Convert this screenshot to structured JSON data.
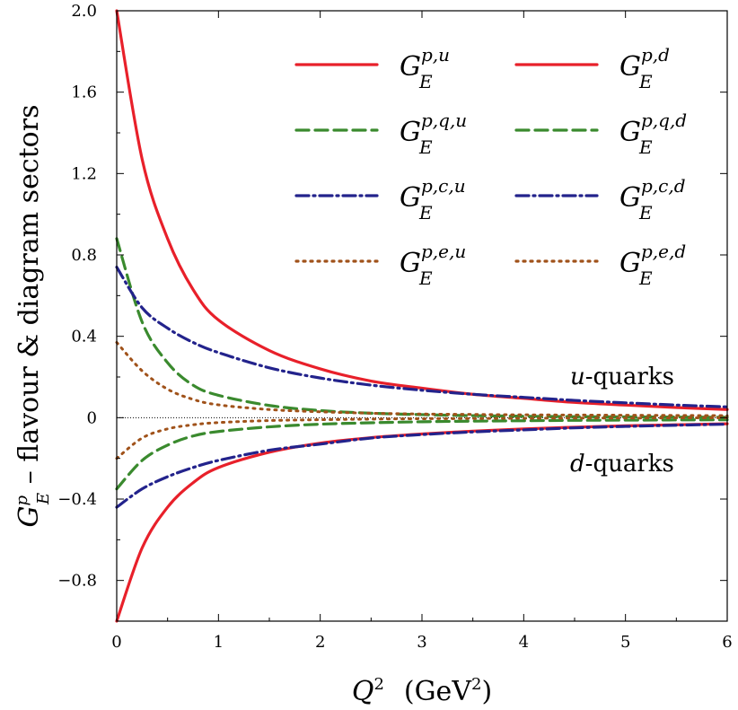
{
  "chart_data": {
    "type": "line",
    "title": "",
    "xlabel": {
      "main": "Q",
      "sup": "2",
      "unit_open": "(GeV",
      "unit_sup": "2",
      "unit_close": ")"
    },
    "ylabel": {
      "base": "G",
      "sup": "p",
      "sub": "E",
      "rest": " – flavour & diagram sectors"
    },
    "xlim": [
      0,
      6
    ],
    "ylim": [
      -1.0,
      2.0
    ],
    "x_ticks": [
      0,
      1,
      2,
      3,
      4,
      5,
      6
    ],
    "x_tick_labels": [
      "0",
      "1",
      "2",
      "3",
      "4",
      "5",
      "6"
    ],
    "y_ticks": [
      -0.8,
      -0.4,
      0,
      0.4,
      0.8,
      1.2,
      1.6,
      2.0
    ],
    "y_tick_labels": [
      "−0.8",
      "−0.4",
      "0",
      "0.4",
      "0.8",
      "1.2",
      "1.6",
      "2.0"
    ],
    "grid": false,
    "legend_position": "top-right",
    "colors": {
      "red": "#e8202a",
      "green": "#3a8a2e",
      "blue": "#23238c",
      "brown": "#a0521a",
      "zero_line": "#000000"
    },
    "annotations": [
      {
        "italic": "u",
        "rest": "-quarks"
      },
      {
        "italic": "d",
        "rest": "-quarks"
      }
    ],
    "x": [
      0,
      0.25,
      0.5,
      0.75,
      1,
      1.5,
      2,
      2.5,
      3,
      3.5,
      4,
      4.5,
      5,
      5.5,
      6
    ],
    "series": [
      {
        "base": "G",
        "sup": "p,u",
        "sub": "E",
        "color": "#e8202a",
        "style": "solid",
        "values": [
          2.0,
          1.27,
          0.88,
          0.63,
          0.48,
          0.33,
          0.24,
          0.18,
          0.145,
          0.115,
          0.095,
          0.075,
          0.062,
          0.05,
          0.04
        ]
      },
      {
        "base": "G",
        "sup": "p,d",
        "sub": "E",
        "color": "#e8202a",
        "style": "solid",
        "values": [
          -1.0,
          -0.64,
          -0.44,
          -0.32,
          -0.245,
          -0.17,
          -0.125,
          -0.098,
          -0.08,
          -0.066,
          -0.055,
          -0.047,
          -0.04,
          -0.035,
          -0.03
        ]
      },
      {
        "base": "G",
        "sup": "p,q,u",
        "sub": "E",
        "color": "#3a8a2e",
        "style": "dashed",
        "values": [
          0.88,
          0.47,
          0.27,
          0.16,
          0.11,
          0.06,
          0.035,
          0.022,
          0.015,
          0.01,
          0.007,
          0.005,
          0.004,
          0.003,
          0.002
        ]
      },
      {
        "base": "G",
        "sup": "p,q,d",
        "sub": "E",
        "color": "#3a8a2e",
        "style": "dashed",
        "values": [
          -0.35,
          -0.21,
          -0.135,
          -0.09,
          -0.068,
          -0.045,
          -0.032,
          -0.025,
          -0.02,
          -0.017,
          -0.015,
          -0.013,
          -0.012,
          -0.011,
          -0.01
        ]
      },
      {
        "base": "G",
        "sup": "p,c,u",
        "sub": "E",
        "color": "#23238c",
        "style": "dashdot",
        "values": [
          0.74,
          0.54,
          0.44,
          0.37,
          0.32,
          0.245,
          0.195,
          0.16,
          0.135,
          0.115,
          0.1,
          0.085,
          0.073,
          0.062,
          0.053
        ]
      },
      {
        "base": "G",
        "sup": "p,c,d",
        "sub": "E",
        "color": "#23238c",
        "style": "dashdot",
        "values": [
          -0.44,
          -0.35,
          -0.29,
          -0.245,
          -0.21,
          -0.16,
          -0.13,
          -0.1,
          -0.083,
          -0.07,
          -0.06,
          -0.05,
          -0.043,
          -0.037,
          -0.032
        ]
      },
      {
        "base": "G",
        "sup": "p,e,u",
        "sub": "E",
        "color": "#a0521a",
        "style": "dotted",
        "values": [
          0.37,
          0.23,
          0.14,
          0.09,
          0.063,
          0.04,
          0.029,
          0.022,
          0.018,
          0.016,
          0.014,
          0.013,
          0.012,
          0.011,
          0.01
        ]
      },
      {
        "base": "G",
        "sup": "p,e,d",
        "sub": "E",
        "color": "#a0521a",
        "style": "dotted",
        "values": [
          -0.2,
          -0.1,
          -0.055,
          -0.035,
          -0.024,
          -0.014,
          -0.01,
          -0.007,
          -0.005,
          -0.004,
          -0.003,
          -0.002,
          -0.002,
          -0.001,
          -0.001
        ]
      }
    ]
  }
}
